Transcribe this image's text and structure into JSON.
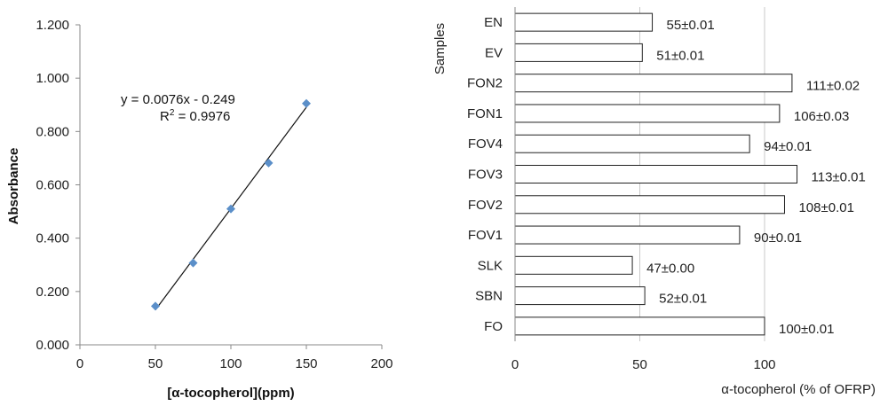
{
  "chart_data": [
    {
      "type": "scatter",
      "title": "",
      "xlabel": "[α-tocopherol](ppm)",
      "ylabel": "Absorbance",
      "xlim": [
        0,
        200
      ],
      "ylim": [
        0,
        1.2
      ],
      "x_ticks": [
        "0",
        "50",
        "100",
        "150",
        "200"
      ],
      "y_ticks": [
        "0.000",
        "0.200",
        "0.400",
        "0.600",
        "0.800",
        "1.000",
        "1.200"
      ],
      "grid": false,
      "marker_color": "#5b8fc9",
      "series": [
        {
          "points": [
            {
              "x": 50,
              "y": 0.145
            },
            {
              "x": 75,
              "y": 0.307
            },
            {
              "x": 100,
              "y": 0.51
            },
            {
              "x": 125,
              "y": 0.682
            },
            {
              "x": 150,
              "y": 0.905
            }
          ]
        }
      ],
      "trendline": {
        "slope": 0.0076,
        "intercept": -0.249,
        "x_range": [
          50,
          150
        ]
      },
      "equation_text": "y = 0.0076x - 0.249",
      "r2_prefix": "R",
      "r2_sup": "2",
      "r2_value": " = 0.9976"
    },
    {
      "type": "bar",
      "orientation": "horizontal",
      "title": "",
      "xlabel": "α-tocopherol (% of OFRP)",
      "ylabel": "Samples",
      "xlim": [
        0,
        125
      ],
      "x_ticks": [
        "0",
        "50",
        "100"
      ],
      "grid": "vertical",
      "categories": [
        "EN",
        "EV",
        "FON2",
        "FON1",
        "FOV4",
        "FOV3",
        "FOV2",
        "FOV1",
        "SLK",
        "SBN",
        "FO"
      ],
      "values": [
        55,
        51,
        111,
        106,
        94,
        113,
        108,
        90,
        47,
        52,
        100
      ],
      "data_labels": [
        "55±0.01",
        "51±0.01",
        "111±0.02",
        "106±0.03",
        "94±0.01",
        "113±0.01",
        "108±0.01",
        "90±0.01",
        "47±0.00",
        "52±0.01",
        "100±0.01"
      ]
    }
  ]
}
